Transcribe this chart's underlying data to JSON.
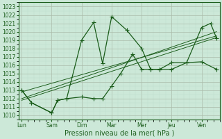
{
  "xlabel": "Pression niveau de la mer( hPa )",
  "background_color": "#cce8d8",
  "grid_major_color": "#aabbaa",
  "grid_minor_color": "#bbddcc",
  "line_color": "#1a5c1a",
  "ylim": [
    1009.5,
    1023.5
  ],
  "yticks": [
    1010,
    1011,
    1012,
    1013,
    1014,
    1015,
    1016,
    1017,
    1018,
    1019,
    1020,
    1021,
    1022,
    1023
  ],
  "x_labels": [
    "Lun",
    "Sam",
    "Dim",
    "Mar",
    "Mer",
    "Jeu",
    "Ven"
  ],
  "x_positions": [
    0,
    1,
    2,
    3,
    4,
    5,
    6
  ],
  "xlim": [
    -0.1,
    6.6
  ],
  "series1_x": [
    0,
    0.33,
    1.0,
    1.2,
    1.5,
    2.0,
    2.4,
    2.7,
    3.0,
    3.5,
    4.0,
    4.3,
    4.6,
    5.0,
    5.5,
    6.0,
    6.5
  ],
  "series1_y": [
    1013.0,
    1011.5,
    1010.3,
    1011.8,
    1012.0,
    1019.0,
    1021.1,
    1016.2,
    1021.8,
    1020.2,
    1018.0,
    1015.5,
    1015.5,
    1016.3,
    1016.3,
    1016.4,
    1015.5
  ],
  "series2_x": [
    0,
    0.33,
    1.0,
    1.2,
    1.5,
    2.0,
    2.4,
    2.7,
    3.0,
    3.3,
    3.7,
    4.0,
    4.3,
    4.6,
    5.0,
    5.5,
    6.0,
    6.3,
    6.5
  ],
  "series2_y": [
    1013.0,
    1011.5,
    1010.3,
    1011.8,
    1012.0,
    1012.2,
    1012.0,
    1012.0,
    1013.5,
    1015.0,
    1017.3,
    1015.5,
    1015.5,
    1015.5,
    1015.5,
    1016.3,
    1020.5,
    1021.0,
    1019.2
  ],
  "trend1_x": [
    0,
    6.5
  ],
  "trend1_y": [
    1012.8,
    1019.5
  ],
  "trend2_x": [
    0,
    6.5
  ],
  "trend2_y": [
    1011.8,
    1019.3
  ],
  "trend3_x": [
    0,
    6.5
  ],
  "trend3_y": [
    1012.0,
    1020.0
  ],
  "marker_size": 2.5,
  "linewidth": 0.9,
  "tick_fontsize": 5.5,
  "label_fontsize": 7
}
